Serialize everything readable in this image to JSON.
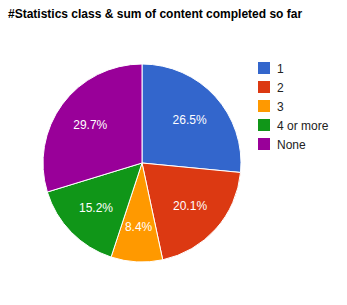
{
  "chart_data": {
    "type": "pie",
    "title": "#Statistics class & sum of content completed so far",
    "categories": [
      "1",
      "2",
      "3",
      "4 or more",
      "None"
    ],
    "values": [
      26.5,
      20.1,
      8.4,
      15.2,
      29.7
    ],
    "value_labels": [
      "26.5%",
      "20.1%",
      "8.4%",
      "15.2%",
      "29.7%"
    ],
    "colors": [
      "#3366cc",
      "#dc3912",
      "#ff9900",
      "#109618",
      "#990099"
    ],
    "data_labels": true,
    "legend": "right"
  }
}
